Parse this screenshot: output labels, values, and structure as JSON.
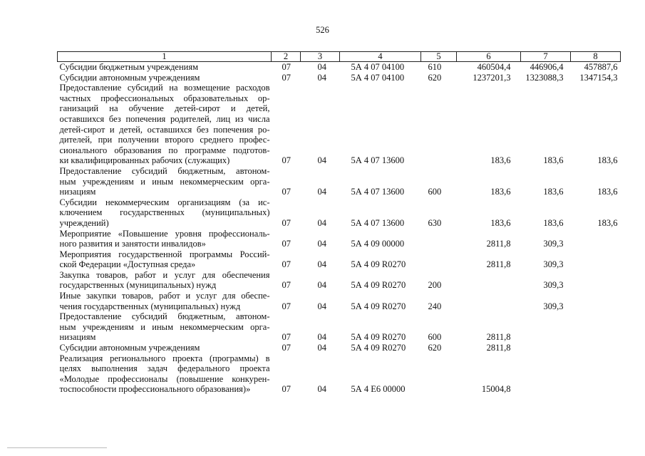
{
  "page_number": "526",
  "header": [
    "1",
    "2",
    "3",
    "4",
    "5",
    "6",
    "7",
    "8"
  ],
  "rows": [
    {
      "desc": [
        "Субсидии бюджетным учреждениям"
      ],
      "c2": "07",
      "c3": "04",
      "c4": "5А 4 07 04100",
      "c5": "610",
      "c6": "460504,4",
      "c7": "446906,4",
      "c8": "457887,6"
    },
    {
      "desc": [
        "Субсидии автономным учреждениям"
      ],
      "c2": "07",
      "c3": "04",
      "c4": "5А 4 07 04100",
      "c5": "620",
      "c6": "1237201,3",
      "c7": "1323088,3",
      "c8": "1347154,3"
    },
    {
      "desc": [
        "Предоставление субсидий на возмещение расходов",
        "частных профессиональных образовательных ор-",
        "ганизаций на обучение детей-сирот и детей,",
        "оставшихся без попечения родителей, лиц из числа",
        "детей-сирот и детей, оставшихся без попечения ро-",
        "дителей, при получении второго среднего профес-",
        "сионального образования по программе подготов-",
        "ки квалифицированных рабочих (служащих)"
      ],
      "c2": "07",
      "c3": "04",
      "c4": "5А 4 07 13600",
      "c5": "",
      "c6": "183,6",
      "c7": "183,6",
      "c8": "183,6"
    },
    {
      "desc": [
        "Предоставление субсидий бюджетным, автоном-",
        "ным учреждениям и иным некоммерческим орга-",
        "низациям"
      ],
      "c2": "07",
      "c3": "04",
      "c4": "5А 4 07 13600",
      "c5": "600",
      "c6": "183,6",
      "c7": "183,6",
      "c8": "183,6"
    },
    {
      "desc": [
        "Субсидии некоммерческим организациям (за ис-",
        "ключением государственных (муниципальных)",
        "учреждений)"
      ],
      "c2": "07",
      "c3": "04",
      "c4": "5А 4 07 13600",
      "c5": "630",
      "c6": "183,6",
      "c7": "183,6",
      "c8": "183,6"
    },
    {
      "desc": [
        "Мероприятие «Повышение уровня профессиональ-",
        "ного развития и занятости инвалидов»"
      ],
      "c2": "07",
      "c3": "04",
      "c4": "5А 4 09 00000",
      "c5": "",
      "c6": "2811,8",
      "c7": "309,3",
      "c8": ""
    },
    {
      "desc": [
        "Мероприятия государственной программы Россий-",
        "ской Федерации «Доступная среда»"
      ],
      "c2": "07",
      "c3": "04",
      "c4": "5А 4 09 R0270",
      "c5": "",
      "c6": "2811,8",
      "c7": "309,3",
      "c8": ""
    },
    {
      "desc": [
        "Закупка товаров, работ и услуг для обеспечения",
        "государственных (муниципальных) нужд"
      ],
      "c2": "07",
      "c3": "04",
      "c4": "5А 4 09 R0270",
      "c5": "200",
      "c6": "",
      "c7": "309,3",
      "c8": ""
    },
    {
      "desc": [
        "Иные закупки товаров, работ и услуг для обеспе-",
        "чения государственных (муниципальных) нужд"
      ],
      "c2": "07",
      "c3": "04",
      "c4": "5А 4 09 R0270",
      "c5": "240",
      "c6": "",
      "c7": "309,3",
      "c8": ""
    },
    {
      "desc": [
        "Предоставление субсидий бюджетным, автоном-",
        "ным учреждениям и иным некоммерческим орга-",
        "низациям"
      ],
      "c2": "07",
      "c3": "04",
      "c4": "5А 4 09 R0270",
      "c5": "600",
      "c6": "2811,8",
      "c7": "",
      "c8": ""
    },
    {
      "desc": [
        "Субсидии автономным учреждениям"
      ],
      "c2": "07",
      "c3": "04",
      "c4": "5А 4 09 R0270",
      "c5": "620",
      "c6": "2811,8",
      "c7": "",
      "c8": ""
    },
    {
      "desc": [
        "Реализация регионального проекта (программы) в",
        "целях выполнения задач федерального проекта",
        "«Молодые профессионалы (повышение конкурен-",
        "тоспособности профессионального образования)»"
      ],
      "c2": "07",
      "c3": "04",
      "c4": "5А 4 E6 00000",
      "c5": "",
      "c6": "15004,8",
      "c7": "",
      "c8": ""
    }
  ]
}
